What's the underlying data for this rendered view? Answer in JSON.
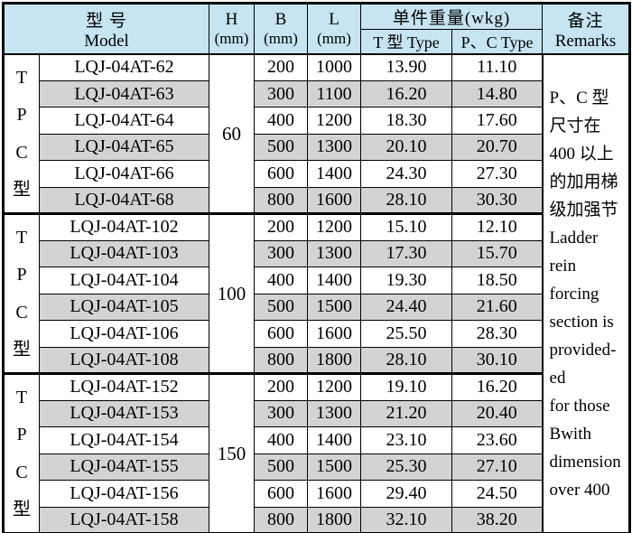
{
  "title": {
    "model_zh": "型  号",
    "model_en": "Model"
  },
  "header": {
    "h_label": "H",
    "h_unit": "(mm)",
    "b_label": "B",
    "b_unit": "(mm)",
    "l_label": "L",
    "l_unit": "(mm)",
    "weight_group_label": "单件重量(wkg)",
    "weight_t_label": "T 型 Type",
    "weight_pc_label": "P、C Type",
    "remarks_zh": "备注",
    "remarks_en": "Remarks"
  },
  "groups": [
    {
      "type_label_chars": [
        "T",
        "P",
        "C",
        "型"
      ],
      "h_mm": "60",
      "rows": [
        {
          "model": "LQJ-04AT-62",
          "b_mm": "200",
          "l_mm": "1000",
          "t_type_wkg": "13.90",
          "pc_type_wkg": "11.10"
        },
        {
          "model": "LQJ-04AT-63",
          "b_mm": "300",
          "l_mm": "1100",
          "t_type_wkg": "16.20",
          "pc_type_wkg": "14.80"
        },
        {
          "model": "LQJ-04AT-64",
          "b_mm": "400",
          "l_mm": "1200",
          "t_type_wkg": "18.30",
          "pc_type_wkg": "17.60"
        },
        {
          "model": "LQJ-04AT-65",
          "b_mm": "500",
          "l_mm": "1300",
          "t_type_wkg": "20.10",
          "pc_type_wkg": "20.70"
        },
        {
          "model": "LQJ-04AT-66",
          "b_mm": "600",
          "l_mm": "1400",
          "t_type_wkg": "24.30",
          "pc_type_wkg": "27.30"
        },
        {
          "model": "LQJ-04AT-68",
          "b_mm": "800",
          "l_mm": "1600",
          "t_type_wkg": "28.10",
          "pc_type_wkg": "30.30"
        }
      ]
    },
    {
      "type_label_chars": [
        "T",
        "P",
        "C",
        "型"
      ],
      "h_mm": "100",
      "rows": [
        {
          "model": "LQJ-04AT-102",
          "b_mm": "200",
          "l_mm": "1200",
          "t_type_wkg": "15.10",
          "pc_type_wkg": "12.10"
        },
        {
          "model": "LQJ-04AT-103",
          "b_mm": "300",
          "l_mm": "1300",
          "t_type_wkg": "17.30",
          "pc_type_wkg": "15.70"
        },
        {
          "model": "LQJ-04AT-104",
          "b_mm": "400",
          "l_mm": "1400",
          "t_type_wkg": "19.30",
          "pc_type_wkg": "18.50"
        },
        {
          "model": "LQJ-04AT-105",
          "b_mm": "500",
          "l_mm": "1500",
          "t_type_wkg": "24.40",
          "pc_type_wkg": "21.60"
        },
        {
          "model": "LQJ-04AT-106",
          "b_mm": "600",
          "l_mm": "1600",
          "t_type_wkg": "25.50",
          "pc_type_wkg": "28.30"
        },
        {
          "model": "LQJ-04AT-108",
          "b_mm": "800",
          "l_mm": "1800",
          "t_type_wkg": "28.10",
          "pc_type_wkg": "30.10"
        }
      ]
    },
    {
      "type_label_chars": [
        "T",
        "P",
        "C",
        "型"
      ],
      "h_mm": "150",
      "rows": [
        {
          "model": "LQJ-04AT-152",
          "b_mm": "200",
          "l_mm": "1200",
          "t_type_wkg": "19.10",
          "pc_type_wkg": "16.20"
        },
        {
          "model": "LQJ-04AT-153",
          "b_mm": "300",
          "l_mm": "1300",
          "t_type_wkg": "21.20",
          "pc_type_wkg": "20.40"
        },
        {
          "model": "LQJ-04AT-154",
          "b_mm": "400",
          "l_mm": "1400",
          "t_type_wkg": "23.10",
          "pc_type_wkg": "23.60"
        },
        {
          "model": "LQJ-04AT-155",
          "b_mm": "500",
          "l_mm": "1500",
          "t_type_wkg": "25.30",
          "pc_type_wkg": "27.10"
        },
        {
          "model": "LQJ-04AT-156",
          "b_mm": "600",
          "l_mm": "1600",
          "t_type_wkg": "29.40",
          "pc_type_wkg": "24.50"
        },
        {
          "model": "LQJ-04AT-158",
          "b_mm": "800",
          "l_mm": "1800",
          "t_type_wkg": "32.10",
          "pc_type_wkg": "38.20"
        }
      ]
    }
  ],
  "remarks_lines": [
    "P、C 型",
    "尺寸在",
    "400 以上",
    "的加用梯",
    "级加强节",
    "Ladder",
    "rein",
    "forcing",
    "section is",
    "provided-",
    "ed",
    "for those",
    "Bwith",
    "dimension",
    "over 400"
  ],
  "colors": {
    "header_bg": "#c6e4f2",
    "shaded_row_bg": "#d3d3d3",
    "border": "#000000",
    "text": "#000000",
    "page_bg": "#ffffff"
  }
}
